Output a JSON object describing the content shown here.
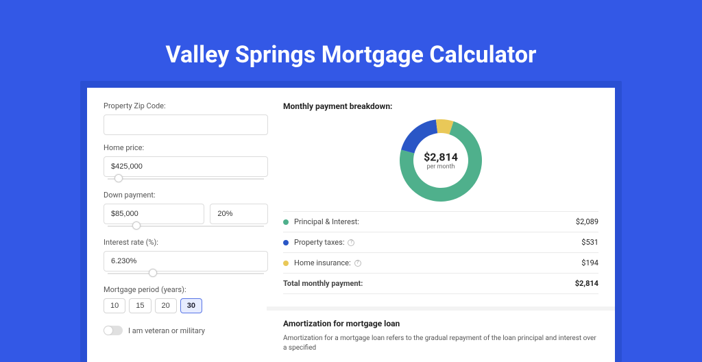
{
  "page": {
    "title": "Valley Springs Mortgage Calculator",
    "background_color": "#3358e6",
    "outer_card_color": "#2a4fd3",
    "card_color": "#ffffff"
  },
  "form": {
    "zip": {
      "label": "Property Zip Code:",
      "value": ""
    },
    "home_price": {
      "label": "Home price:",
      "value": "$425,000",
      "slider_pos_pct": 9
    },
    "down_payment": {
      "label": "Down payment:",
      "amount": "$85,000",
      "percent": "20%",
      "slider_pos_pct": 20
    },
    "interest_rate": {
      "label": "Interest rate (%):",
      "value": "6.230%",
      "slider_pos_pct": 30
    },
    "mortgage_period": {
      "label": "Mortgage period (years):",
      "options": [
        "10",
        "15",
        "20",
        "30"
      ],
      "selected_index": 3
    },
    "veteran": {
      "label": "I am veteran or military",
      "checked": false
    }
  },
  "breakdown": {
    "title": "Monthly payment breakdown:",
    "donut": {
      "center_value": "$2,814",
      "center_label": "per month",
      "size": 120,
      "thickness": 20,
      "segments": [
        {
          "color": "#4fb08c",
          "fraction": 0.742
        },
        {
          "color": "#2a56c6",
          "fraction": 0.189
        },
        {
          "color": "#e9c858",
          "fraction": 0.069
        }
      ]
    },
    "rows": [
      {
        "color": "#4fb08c",
        "label": "Principal & Interest:",
        "value": "$2,089",
        "help": false
      },
      {
        "color": "#2a56c6",
        "label": "Property taxes:",
        "value": "$531",
        "help": true
      },
      {
        "color": "#e9c858",
        "label": "Home insurance:",
        "value": "$194",
        "help": true
      }
    ],
    "total": {
      "label": "Total monthly payment:",
      "value": "$2,814"
    }
  },
  "amortization": {
    "title": "Amortization for mortgage loan",
    "body": "Amortization for a mortgage loan refers to the gradual repayment of the loan principal and interest over a specified"
  }
}
